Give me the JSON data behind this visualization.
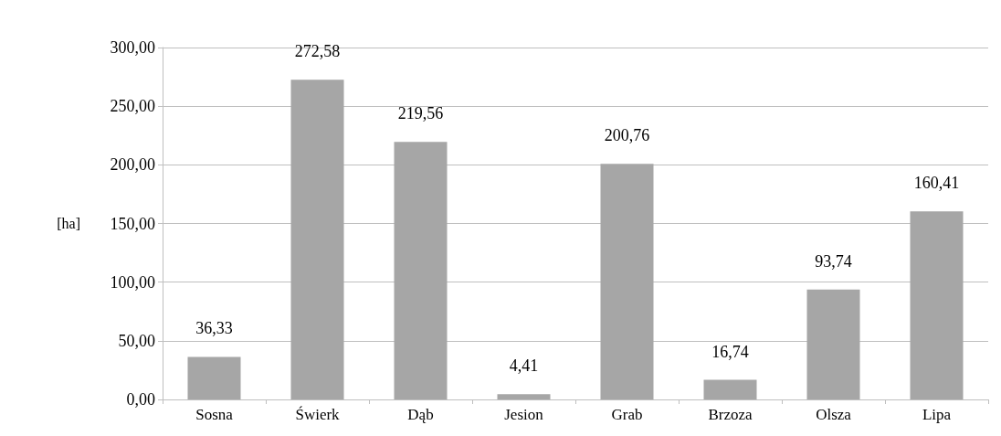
{
  "chart_data": {
    "type": "bar",
    "ylabel": "[ha]",
    "categories": [
      "Sosna",
      "Świerk",
      "Dąb",
      "Jesion",
      "Grab",
      "Brzoza",
      "Olsza",
      "Lipa"
    ],
    "values": [
      36.33,
      272.58,
      219.56,
      4.41,
      200.76,
      16.74,
      93.74,
      160.41
    ],
    "value_labels": [
      "36,33",
      "272,58",
      "219,56",
      "4,41",
      "200,76",
      "16,74",
      "93,74",
      "160,41"
    ],
    "color": "#a6a6a6",
    "ylim": [
      0,
      300
    ],
    "yticks": [
      {
        "value": 0,
        "label": "0,00"
      },
      {
        "value": 50,
        "label": "50,00"
      },
      {
        "value": 100,
        "label": "100,00"
      },
      {
        "value": 150,
        "label": "150,00"
      },
      {
        "value": 200,
        "label": "200,00"
      },
      {
        "value": 250,
        "label": "250,00"
      },
      {
        "value": 300,
        "label": "300,00"
      }
    ],
    "grid": "y"
  }
}
